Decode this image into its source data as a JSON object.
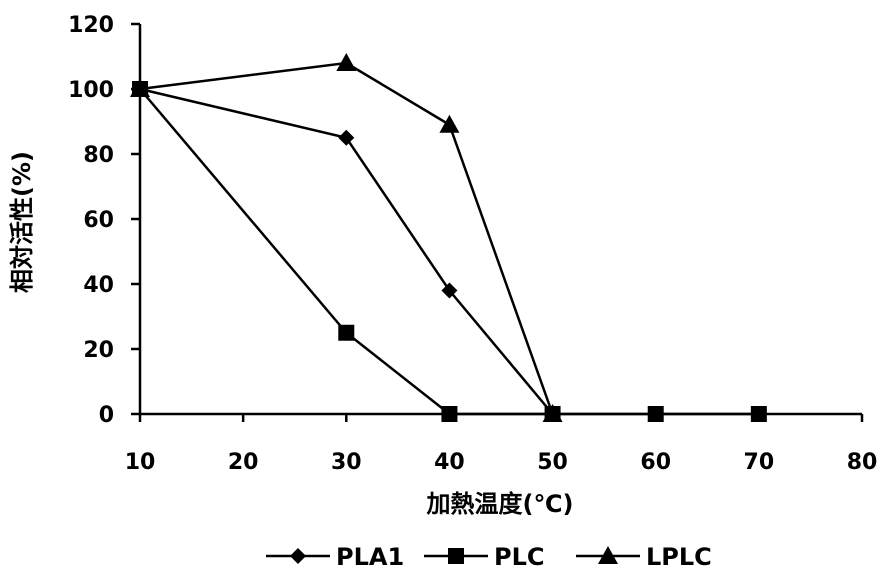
{
  "chart_data": {
    "type": "line",
    "xlabel": "加熱温度(℃)",
    "ylabel": "相対活性(%)",
    "xlim": [
      10,
      80
    ],
    "ylim": [
      0,
      120
    ],
    "x_ticks": [
      "10",
      "20",
      "30",
      "40",
      "50",
      "60",
      "70",
      "80"
    ],
    "y_ticks": [
      "0",
      "20",
      "40",
      "60",
      "80",
      "100",
      "120"
    ],
    "grid": false,
    "legend_position": "bottom",
    "series": [
      {
        "name": "PLA1",
        "marker": "diamond",
        "color": "#000000",
        "x": [
          10,
          30,
          40,
          50
        ],
        "y": [
          100,
          85,
          38,
          0
        ]
      },
      {
        "name": "PLC",
        "marker": "square",
        "color": "#000000",
        "x": [
          10,
          30,
          40,
          50,
          60,
          70
        ],
        "y": [
          100,
          25,
          0,
          0,
          0,
          0
        ]
      },
      {
        "name": "LPLC",
        "marker": "triangle",
        "color": "#000000",
        "x": [
          10,
          30,
          40,
          50
        ],
        "y": [
          100,
          108,
          89,
          0
        ]
      }
    ]
  }
}
